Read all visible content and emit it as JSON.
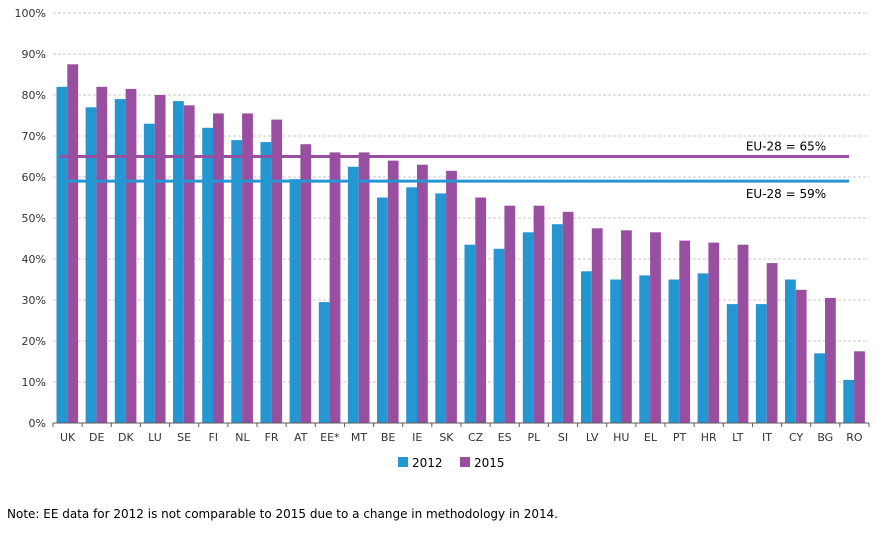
{
  "chart_data": {
    "type": "bar",
    "title": "",
    "categories": [
      "UK",
      "DE",
      "DK",
      "LU",
      "SE",
      "FI",
      "NL",
      "FR",
      "AT",
      "EE*",
      "MT",
      "BE",
      "IE",
      "SK",
      "CZ",
      "ES",
      "PL",
      "SI",
      "LV",
      "HU",
      "EL",
      "PT",
      "HR",
      "LT",
      "IT",
      "CY",
      "BG",
      "RO"
    ],
    "series": [
      {
        "name": "2012",
        "color": "#2497D3",
        "values": [
          82,
          77,
          79,
          73,
          78.5,
          72,
          69,
          68.5,
          59.5,
          29.5,
          62.5,
          55,
          57.5,
          56,
          43.5,
          42.5,
          46.5,
          48.5,
          37,
          35,
          36,
          35,
          36.5,
          29,
          29,
          35,
          17,
          10.5
        ]
      },
      {
        "name": "2015",
        "color": "#984FA0",
        "values": [
          87.5,
          82,
          81.5,
          80,
          77.5,
          75.5,
          75.5,
          74,
          68,
          66,
          66,
          64,
          63,
          61.5,
          55,
          53,
          53,
          51.5,
          47.5,
          47,
          46.5,
          44.5,
          44,
          43.5,
          39,
          32.5,
          30.5,
          17.5
        ]
      }
    ],
    "xlabel": "",
    "ylabel": "",
    "ylim": [
      0,
      100
    ],
    "ytick_step": 10,
    "ytick_suffix": "%",
    "grid": true,
    "legend_position": "bottom-center",
    "reference_lines": [
      {
        "label": "EU-28 = 65%",
        "value": 65,
        "color": "#984FA0",
        "label_side": "above"
      },
      {
        "label": "EU-28 = 59%",
        "value": 59,
        "color": "#2497D3",
        "label_side": "below"
      }
    ]
  },
  "note": "Note: EE data for 2012 is not comparable to 2015 due to a change in methodology in 2014.",
  "colors": {
    "gridline": "#c9c9c9",
    "axis": "#595959",
    "tick_label": "#333333",
    "legend_text": "#000000"
  }
}
